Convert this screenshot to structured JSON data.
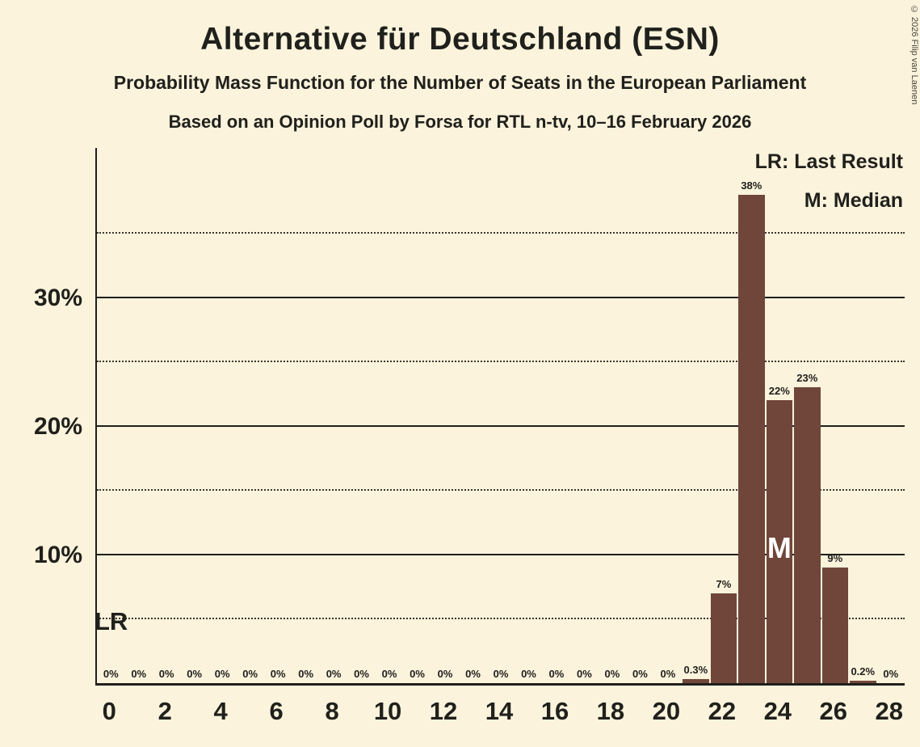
{
  "page": {
    "background_color": "#fbf3dc",
    "copyright": "© 2026 Filip van Laenen"
  },
  "header": {
    "title": "Alternative für Deutschland (ESN)",
    "subtitle1": "Probability Mass Function for the Number of Seats in the European Parliament",
    "subtitle2": "Based on an Opinion Poll by Forsa for RTL n-tv, 10–16 February 2026"
  },
  "legend": {
    "lr": "LR: Last Result",
    "m": "M: Median"
  },
  "chart_data": {
    "type": "bar",
    "title": "Alternative für Deutschland (ESN) — Probability Mass Function for the Number of Seats in the European Parliament",
    "categories": [
      0,
      1,
      2,
      3,
      4,
      5,
      6,
      7,
      8,
      9,
      10,
      11,
      12,
      13,
      14,
      15,
      16,
      17,
      18,
      19,
      20,
      21,
      22,
      23,
      24,
      25,
      26,
      27,
      28
    ],
    "values": [
      0,
      0,
      0,
      0,
      0,
      0,
      0,
      0,
      0,
      0,
      0,
      0,
      0,
      0,
      0,
      0,
      0,
      0,
      0,
      0,
      0,
      0.3,
      7,
      38,
      22,
      23,
      9,
      0.2,
      0
    ],
    "bar_labels": [
      "0%",
      "0%",
      "0%",
      "0%",
      "0%",
      "0%",
      "0%",
      "0%",
      "0%",
      "0%",
      "0%",
      "0%",
      "0%",
      "0%",
      "0%",
      "0%",
      "0%",
      "0%",
      "0%",
      "0%",
      "0%",
      "0.3%",
      "7%",
      "38%",
      "22%",
      "23%",
      "9%",
      "0.2%",
      "0%"
    ],
    "x_tick_values": [
      0,
      2,
      4,
      6,
      8,
      10,
      12,
      14,
      16,
      18,
      20,
      22,
      24,
      26,
      28
    ],
    "x_tick_labels": [
      "0",
      "2",
      "4",
      "6",
      "8",
      "10",
      "12",
      "14",
      "16",
      "18",
      "20",
      "22",
      "24",
      "26",
      "28"
    ],
    "y_tick_values": [
      10,
      20,
      30
    ],
    "y_tick_labels": [
      "10%",
      "20%",
      "30%"
    ],
    "solid_gridlines": [
      10,
      20,
      30
    ],
    "dotted_gridlines": [
      5,
      15,
      25,
      35
    ],
    "ylim": [
      0,
      41.6
    ],
    "bar_color": "#70463a",
    "annotations": {
      "last_result_label": "LR",
      "median_label": "M",
      "median_seat": 24
    },
    "legend": [
      "LR: Last Result",
      "M: Median"
    ],
    "grid": "horizontal only"
  }
}
